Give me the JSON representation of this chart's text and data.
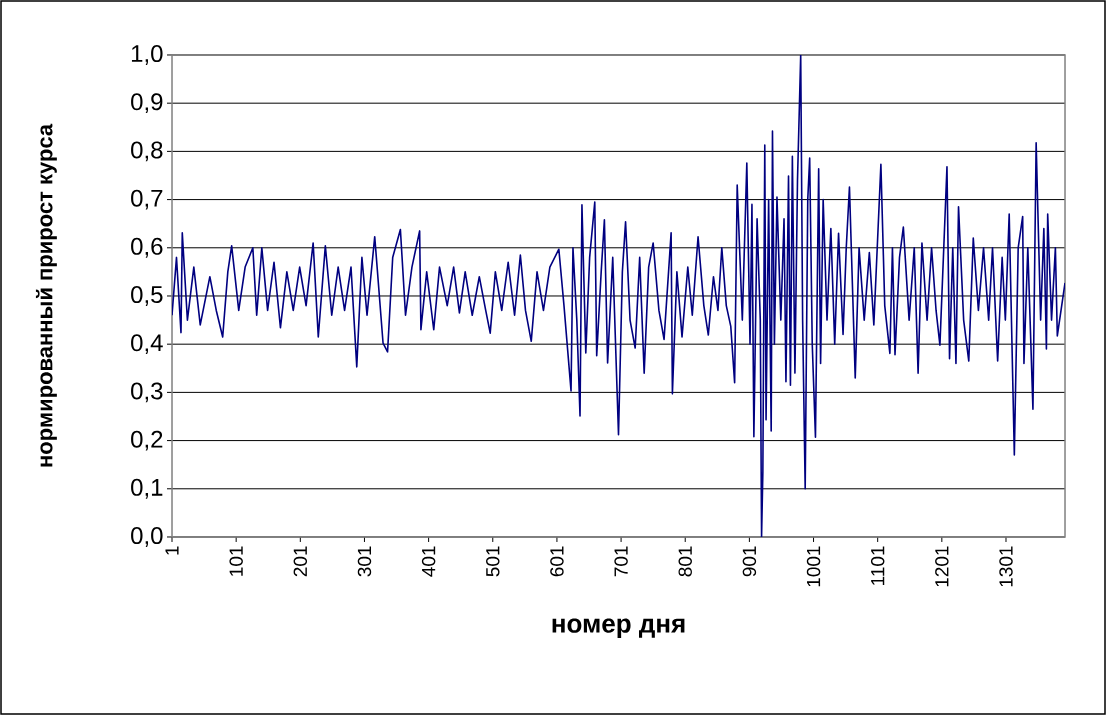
{
  "chart_data": {
    "type": "line",
    "xlabel": "номер дня",
    "ylabel": "нормированный прирост курса",
    "xlim": [
      1,
      1393
    ],
    "xticks": [
      1,
      101,
      201,
      301,
      401,
      501,
      601,
      701,
      801,
      901,
      1001,
      1101,
      1201,
      1301
    ],
    "ylim": [
      0,
      1
    ],
    "yticks": [
      {
        "value": 0,
        "label": "0,0"
      },
      {
        "value": 0.1,
        "label": "0,1"
      },
      {
        "value": 0.2,
        "label": "0,2"
      },
      {
        "value": 0.3,
        "label": "0,3"
      },
      {
        "value": 0.4,
        "label": "0,4"
      },
      {
        "value": 0.5,
        "label": "0,5"
      },
      {
        "value": 0.6,
        "label": "0,6"
      },
      {
        "value": 0.7,
        "label": "0,7"
      },
      {
        "value": 0.8,
        "label": "0,8"
      },
      {
        "value": 0.9,
        "label": "0,9"
      },
      {
        "value": 1,
        "label": "1,0"
      }
    ],
    "grid": "y",
    "line_style": "solid",
    "x": [
      1,
      8,
      15,
      17,
      25,
      35,
      45,
      60,
      70,
      80,
      88,
      94,
      105,
      115,
      127,
      133,
      141,
      150,
      160,
      170,
      180,
      190,
      200,
      210,
      221,
      229,
      240,
      250,
      260,
      270,
      280,
      289,
      297,
      305,
      317,
      330,
      337,
      345,
      357,
      365,
      375,
      387,
      389,
      398,
      409,
      418,
      430,
      440,
      449,
      458,
      469,
      480,
      490,
      497,
      505,
      515,
      525,
      535,
      544,
      552,
      561,
      570,
      580,
      590,
      604,
      612,
      623,
      626,
      632,
      637,
      640,
      646,
      652,
      660,
      663,
      670,
      675,
      680,
      688,
      697,
      703,
      708,
      715,
      723,
      730,
      737,
      744,
      751,
      760,
      768,
      775,
      779,
      781,
      788,
      796,
      805,
      812,
      821,
      830,
      837,
      845,
      852,
      858,
      865,
      872,
      878,
      882,
      890,
      897,
      902,
      905,
      908,
      913,
      918,
      920,
      922,
      925,
      927,
      931,
      935,
      937,
      940,
      944,
      950,
      955,
      958,
      962,
      965,
      968,
      972,
      976,
      981,
      984,
      988,
      992,
      995,
      999,
      1004,
      1009,
      1012,
      1016,
      1022,
      1028,
      1034,
      1040,
      1047,
      1052,
      1057,
      1066,
      1072,
      1080,
      1088,
      1095,
      1106,
      1112,
      1120,
      1124,
      1128,
      1135,
      1141,
      1150,
      1158,
      1164,
      1170,
      1178,
      1185,
      1192,
      1198,
      1209,
      1213,
      1218,
      1223,
      1227,
      1235,
      1243,
      1250,
      1258,
      1266,
      1274,
      1280,
      1288,
      1295,
      1300,
      1306,
      1314,
      1320,
      1327,
      1329,
      1335,
      1343,
      1348,
      1355,
      1360,
      1364,
      1366,
      1372,
      1378,
      1381,
      1393
    ],
    "series": [
      {
        "color": "#000080",
        "values": [
          0.46,
          0.58,
          0.424,
          0.631,
          0.45,
          0.56,
          0.44,
          0.54,
          0.47,
          0.415,
          0.55,
          0.604,
          0.47,
          0.56,
          0.6,
          0.46,
          0.6,
          0.47,
          0.57,
          0.434,
          0.55,
          0.47,
          0.56,
          0.48,
          0.61,
          0.415,
          0.604,
          0.46,
          0.56,
          0.47,
          0.56,
          0.353,
          0.58,
          0.46,
          0.623,
          0.402,
          0.384,
          0.58,
          0.638,
          0.46,
          0.56,
          0.635,
          0.43,
          0.55,
          0.43,
          0.56,
          0.48,
          0.56,
          0.465,
          0.55,
          0.46,
          0.54,
          0.47,
          0.423,
          0.55,
          0.47,
          0.57,
          0.46,
          0.585,
          0.47,
          0.406,
          0.55,
          0.47,
          0.56,
          0.597,
          0.48,
          0.303,
          0.6,
          0.45,
          0.251,
          0.689,
          0.382,
          0.58,
          0.695,
          0.376,
          0.55,
          0.658,
          0.361,
          0.58,
          0.212,
          0.55,
          0.654,
          0.45,
          0.392,
          0.58,
          0.34,
          0.56,
          0.61,
          0.47,
          0.41,
          0.55,
          0.631,
          0.297,
          0.55,
          0.415,
          0.56,
          0.46,
          0.623,
          0.48,
          0.419,
          0.54,
          0.47,
          0.6,
          0.48,
          0.437,
          0.32,
          0.73,
          0.45,
          0.776,
          0.4,
          0.69,
          0.208,
          0.66,
          0.45,
          0.0,
          0.135,
          0.813,
          0.243,
          0.7,
          0.22,
          0.842,
          0.4,
          0.705,
          0.45,
          0.66,
          0.322,
          0.749,
          0.315,
          0.79,
          0.34,
          0.74,
          1.0,
          0.45,
          0.1,
          0.7,
          0.786,
          0.4,
          0.207,
          0.764,
          0.36,
          0.7,
          0.45,
          0.64,
          0.4,
          0.63,
          0.42,
          0.6,
          0.726,
          0.33,
          0.6,
          0.45,
          0.59,
          0.44,
          0.773,
          0.48,
          0.381,
          0.6,
          0.378,
          0.58,
          0.643,
          0.45,
          0.6,
          0.34,
          0.61,
          0.45,
          0.6,
          0.47,
          0.398,
          0.768,
          0.37,
          0.6,
          0.36,
          0.685,
          0.45,
          0.365,
          0.62,
          0.47,
          0.6,
          0.45,
          0.6,
          0.365,
          0.58,
          0.45,
          0.67,
          0.17,
          0.6,
          0.665,
          0.36,
          0.6,
          0.265,
          0.818,
          0.45,
          0.64,
          0.39,
          0.67,
          0.45,
          0.6,
          0.417,
          0.527
        ]
      }
    ]
  }
}
